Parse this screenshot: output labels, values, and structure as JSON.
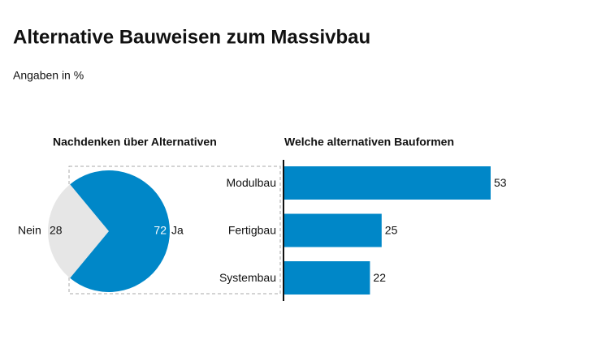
{
  "title": "Alternative Bauweisen zum Massivbau",
  "subtitle": "Angaben in %",
  "chart_data": [
    {
      "type": "pie",
      "title": "Nachdenken über Alternativen",
      "categories": [
        "Nein",
        "Ja"
      ],
      "values": [
        28,
        72
      ],
      "colors": [
        "#e6e6e6",
        "#0087c8"
      ]
    },
    {
      "type": "bar",
      "title": "Welche alternativen Bauformen",
      "categories": [
        "Modulbau",
        "Fertigbau",
        "Systembau"
      ],
      "values": [
        53,
        25,
        22
      ],
      "color": "#0087c8"
    }
  ]
}
